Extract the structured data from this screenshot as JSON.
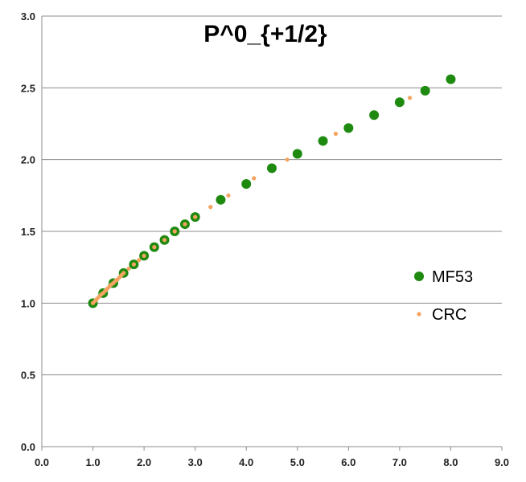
{
  "chart_data": {
    "type": "scatter",
    "title": "P^0_{+1/2}",
    "xlabel": "",
    "ylabel": "",
    "xlim": [
      0,
      9
    ],
    "ylim": [
      0,
      3
    ],
    "grid": true,
    "legend_position": "right",
    "x_ticks": [
      "0.0",
      "1.0",
      "2.0",
      "3.0",
      "4.0",
      "5.0",
      "6.0",
      "7.0",
      "8.0",
      "9.0"
    ],
    "y_ticks": [
      "0.0",
      "0.5",
      "1.0",
      "1.5",
      "2.0",
      "2.5",
      "3.0"
    ],
    "series": [
      {
        "name": "MF53",
        "color": "#1e8a10",
        "marker": "large-circle",
        "points": [
          [
            1.0,
            1.0
          ],
          [
            1.2,
            1.07
          ],
          [
            1.4,
            1.14
          ],
          [
            1.6,
            1.21
          ],
          [
            1.8,
            1.27
          ],
          [
            2.0,
            1.33
          ],
          [
            2.2,
            1.39
          ],
          [
            2.4,
            1.44
          ],
          [
            2.6,
            1.5
          ],
          [
            2.8,
            1.55
          ],
          [
            3.0,
            1.6
          ],
          [
            3.5,
            1.72
          ],
          [
            4.0,
            1.83
          ],
          [
            4.5,
            1.94
          ],
          [
            5.0,
            2.04
          ],
          [
            5.5,
            2.13
          ],
          [
            6.0,
            2.22
          ],
          [
            6.5,
            2.31
          ],
          [
            7.0,
            2.4
          ],
          [
            7.5,
            2.48
          ],
          [
            8.0,
            2.56
          ]
        ]
      },
      {
        "name": "CRC",
        "color": "#f4a460",
        "marker": "small-dot",
        "points": [
          [
            1.0,
            1.0
          ],
          [
            1.04,
            1.015
          ],
          [
            1.08,
            1.03
          ],
          [
            1.12,
            1.045
          ],
          [
            1.16,
            1.06
          ],
          [
            1.2,
            1.07
          ],
          [
            1.24,
            1.085
          ],
          [
            1.28,
            1.1
          ],
          [
            1.32,
            1.115
          ],
          [
            1.36,
            1.13
          ],
          [
            1.4,
            1.14
          ],
          [
            1.44,
            1.155
          ],
          [
            1.48,
            1.165
          ],
          [
            1.52,
            1.18
          ],
          [
            1.56,
            1.195
          ],
          [
            1.6,
            1.21
          ],
          [
            1.7,
            1.24
          ],
          [
            1.8,
            1.27
          ],
          [
            1.9,
            1.3
          ],
          [
            2.0,
            1.33
          ],
          [
            2.2,
            1.39
          ],
          [
            2.4,
            1.44
          ],
          [
            2.6,
            1.5
          ],
          [
            2.8,
            1.55
          ],
          [
            3.0,
            1.6
          ],
          [
            3.3,
            1.67
          ],
          [
            3.65,
            1.75
          ],
          [
            4.15,
            1.87
          ],
          [
            4.8,
            2.0
          ],
          [
            5.75,
            2.18
          ],
          [
            7.2,
            2.43
          ]
        ]
      }
    ]
  }
}
